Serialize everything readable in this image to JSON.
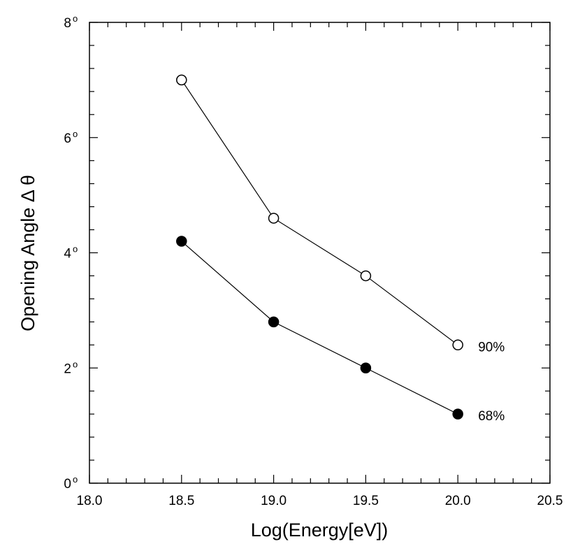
{
  "chart_data": {
    "type": "line",
    "title": "",
    "xlabel": "Log(Energy[eV])",
    "ylabel": "Opening Angle  Δ θ",
    "xlim": [
      18.0,
      20.5
    ],
    "ylim": [
      0,
      8
    ],
    "x_ticks": [
      "18.0",
      "18.5",
      "19.0",
      "19.5",
      "20.0",
      "20.5"
    ],
    "x_tick_values": [
      18.0,
      18.5,
      19.0,
      19.5,
      20.0,
      20.5
    ],
    "y_ticks": [
      "0",
      "2",
      "4",
      "6",
      "8"
    ],
    "y_tick_values": [
      0,
      2,
      4,
      6,
      8
    ],
    "y_tick_suffix": "o",
    "grid": false,
    "series": [
      {
        "name": "90%",
        "marker": "open-circle",
        "x": [
          18.5,
          19.0,
          19.5,
          20.0
        ],
        "values": [
          7.0,
          4.6,
          3.6,
          2.4
        ]
      },
      {
        "name": "68%",
        "marker": "filled-circle",
        "x": [
          18.5,
          19.0,
          19.5,
          20.0
        ],
        "values": [
          4.2,
          2.8,
          2.0,
          1.2
        ]
      }
    ]
  }
}
